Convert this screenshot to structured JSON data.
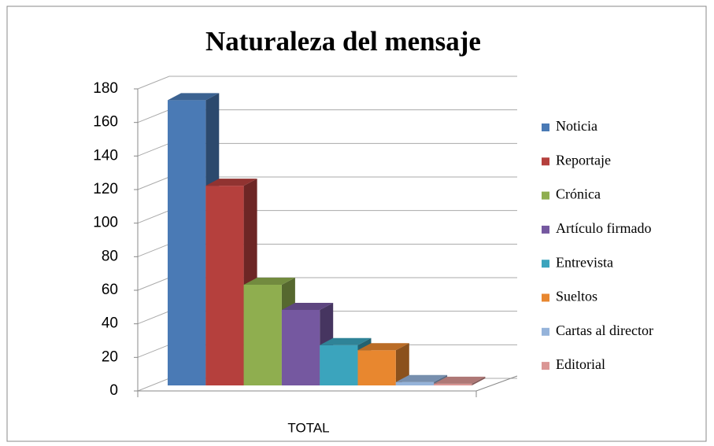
{
  "chart_data": {
    "type": "bar",
    "title": "Naturaleza del mensaje",
    "categories": [
      "TOTAL"
    ],
    "series": [
      {
        "name": "Noticia",
        "color": "#4a7ab5",
        "values": [
          170
        ]
      },
      {
        "name": "Reportaje",
        "color": "#b5403d",
        "values": [
          119
        ]
      },
      {
        "name": "Crónica",
        "color": "#8fae4f",
        "values": [
          60
        ]
      },
      {
        "name": "Artículo firmado",
        "color": "#7558a0",
        "values": [
          45
        ]
      },
      {
        "name": "Entrevista",
        "color": "#3ba4bd",
        "values": [
          24
        ]
      },
      {
        "name": "Sueltos",
        "color": "#e8872f",
        "values": [
          21
        ]
      },
      {
        "name": "Cartas al director",
        "color": "#95b3da",
        "values": [
          2
        ]
      },
      {
        "name": "Editorial",
        "color": "#da9694",
        "values": [
          1
        ]
      }
    ],
    "ylim": [
      0,
      180
    ],
    "yticks": [
      0,
      20,
      40,
      60,
      80,
      100,
      120,
      140,
      160,
      180
    ],
    "grid": true,
    "legend": "right"
  }
}
